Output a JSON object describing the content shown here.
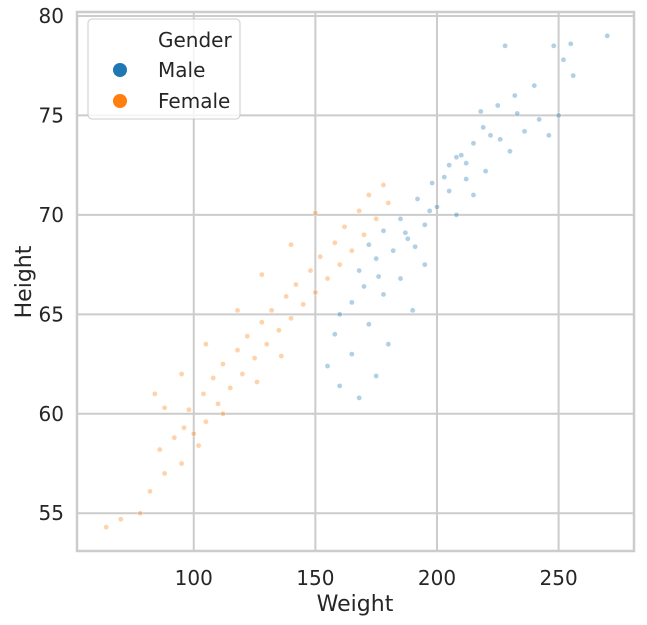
{
  "chart_data": {
    "type": "scatter",
    "xlabel": "Weight",
    "ylabel": "Height",
    "xlim": [
      52,
      281
    ],
    "ylim": [
      53.1,
      80.2
    ],
    "xticks": [
      100,
      150,
      200,
      250
    ],
    "yticks": [
      55,
      60,
      65,
      70,
      75,
      80
    ],
    "grid": true,
    "legend": {
      "title": "Gender",
      "placement": "top-left",
      "entries": [
        {
          "label": "Male",
          "color": "#1f77b4"
        },
        {
          "label": "Female",
          "color": "#ff7f0e"
        }
      ]
    },
    "series": [
      {
        "name": "Male",
        "color": "#1f77b4",
        "points": [
          [
            270,
            79.0
          ],
          [
            255,
            78.6
          ],
          [
            248,
            78.5
          ],
          [
            252,
            77.8
          ],
          [
            228,
            78.5
          ],
          [
            256,
            77.0
          ],
          [
            240,
            76.5
          ],
          [
            232,
            76.0
          ],
          [
            225,
            75.5
          ],
          [
            218,
            75.2
          ],
          [
            250,
            75.0
          ],
          [
            242,
            74.8
          ],
          [
            236,
            74.2
          ],
          [
            222,
            74.0
          ],
          [
            215,
            73.6
          ],
          [
            230,
            73.2
          ],
          [
            210,
            73.0
          ],
          [
            205,
            72.5
          ],
          [
            220,
            72.2
          ],
          [
            212,
            71.8
          ],
          [
            198,
            71.6
          ],
          [
            205,
            71.2
          ],
          [
            215,
            71.0
          ],
          [
            192,
            70.8
          ],
          [
            200,
            70.4
          ],
          [
            208,
            70.0
          ],
          [
            185,
            69.8
          ],
          [
            195,
            69.5
          ],
          [
            178,
            69.2
          ],
          [
            188,
            68.8
          ],
          [
            172,
            68.5
          ],
          [
            182,
            68.2
          ],
          [
            175,
            67.8
          ],
          [
            195,
            67.5
          ],
          [
            168,
            67.2
          ],
          [
            185,
            66.8
          ],
          [
            170,
            66.4
          ],
          [
            178,
            66.0
          ],
          [
            165,
            65.6
          ],
          [
            190,
            65.2
          ],
          [
            160,
            65.0
          ],
          [
            172,
            64.5
          ],
          [
            158,
            64.0
          ],
          [
            180,
            63.5
          ],
          [
            165,
            63.0
          ],
          [
            155,
            62.4
          ],
          [
            175,
            61.9
          ],
          [
            160,
            61.4
          ],
          [
            168,
            60.8
          ],
          [
            212,
            72.6
          ],
          [
            226,
            73.8
          ],
          [
            203,
            71.9
          ],
          [
            197,
            70.2
          ],
          [
            187,
            69.1
          ],
          [
            219,
            74.4
          ],
          [
            233,
            75.1
          ],
          [
            246,
            74.0
          ],
          [
            208,
            72.9
          ],
          [
            191,
            68.4
          ],
          [
            176,
            66.9
          ]
        ]
      },
      {
        "name": "Female",
        "color": "#ff7f0e",
        "points": [
          [
            64,
            54.3
          ],
          [
            70,
            54.7
          ],
          [
            78,
            55.0
          ],
          [
            82,
            56.1
          ],
          [
            88,
            57.0
          ],
          [
            95,
            57.5
          ],
          [
            86,
            58.2
          ],
          [
            92,
            58.8
          ],
          [
            100,
            59.0
          ],
          [
            105,
            59.6
          ],
          [
            98,
            60.2
          ],
          [
            110,
            60.5
          ],
          [
            104,
            61.0
          ],
          [
            115,
            61.3
          ],
          [
            108,
            61.8
          ],
          [
            120,
            62.0
          ],
          [
            112,
            62.5
          ],
          [
            125,
            62.8
          ],
          [
            118,
            63.2
          ],
          [
            130,
            63.5
          ],
          [
            122,
            63.9
          ],
          [
            135,
            64.2
          ],
          [
            128,
            64.6
          ],
          [
            140,
            64.8
          ],
          [
            132,
            65.2
          ],
          [
            145,
            65.5
          ],
          [
            138,
            65.9
          ],
          [
            150,
            66.1
          ],
          [
            142,
            66.5
          ],
          [
            155,
            66.8
          ],
          [
            148,
            67.2
          ],
          [
            160,
            67.5
          ],
          [
            152,
            67.9
          ],
          [
            165,
            68.2
          ],
          [
            158,
            68.6
          ],
          [
            170,
            69.0
          ],
          [
            162,
            69.4
          ],
          [
            175,
            69.8
          ],
          [
            168,
            70.2
          ],
          [
            180,
            70.6
          ],
          [
            172,
            71.0
          ],
          [
            178,
            71.5
          ],
          [
            118,
            65.2
          ],
          [
            105,
            63.5
          ],
          [
            95,
            62.0
          ],
          [
            140,
            68.5
          ],
          [
            128,
            67.0
          ],
          [
            88,
            60.3
          ],
          [
            96,
            59.3
          ],
          [
            102,
            58.4
          ],
          [
            84,
            61.0
          ],
          [
            150,
            70.1
          ],
          [
            112,
            60.0
          ],
          [
            126,
            61.6
          ],
          [
            136,
            62.9
          ]
        ]
      }
    ]
  }
}
